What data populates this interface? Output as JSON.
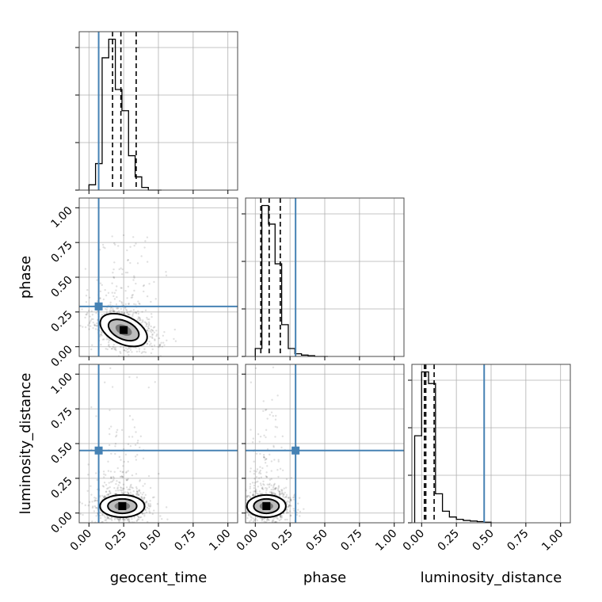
{
  "chart_data": {
    "type": "corner",
    "parameters": [
      "geocent_time",
      "phase",
      "luminosity_distance"
    ],
    "tick_labels": [
      "0.00",
      "0.25",
      "0.50",
      "0.75",
      "1.00"
    ],
    "ticks": [
      0,
      0.25,
      0.5,
      0.75,
      1.0
    ],
    "range": [
      -0.07,
      1.07
    ],
    "truths": {
      "geocent_time": 0.07,
      "phase": 0.29,
      "luminosity_distance": 0.45
    },
    "grid": true,
    "colors": {
      "truth": "#4682b4",
      "hist": "#000000",
      "samples": "#000000"
    },
    "histograms": {
      "geocent_time": {
        "bin_edges": [
          0.0,
          0.0475,
          0.095,
          0.1425,
          0.19,
          0.2375,
          0.285,
          0.3325,
          0.38,
          0.4275,
          0.475,
          0.5225
        ],
        "counts": [
          2,
          10,
          50,
          57,
          38,
          30,
          13,
          5,
          1,
          0,
          0
        ],
        "quantiles": [
          0.17,
          0.23,
          0.34
        ]
      },
      "phase": {
        "bin_edges": [
          0.0,
          0.0475,
          0.095,
          0.1425,
          0.19,
          0.2375,
          0.285,
          0.3325,
          0.38,
          0.4275,
          0.475,
          0.5225
        ],
        "counts": [
          3,
          57,
          50,
          35,
          12,
          3,
          1,
          0.5,
          0.3,
          0,
          0
        ],
        "quantiles": [
          0.04,
          0.1,
          0.18
        ]
      },
      "luminosity_distance": {
        "bin_edges": [
          -0.05,
          0.0,
          0.05,
          0.1,
          0.15,
          0.2,
          0.25,
          0.3,
          0.35,
          0.4,
          0.45,
          0.5
        ],
        "counts": [
          15,
          26,
          24,
          5,
          2,
          1,
          0.6,
          0.4,
          0.3,
          0.2,
          0.1
        ],
        "quantiles": [
          0.02,
          0.03,
          0.09
        ]
      }
    },
    "contours_2d": [
      {
        "x": "geocent_time",
        "y": "phase",
        "center": [
          0.25,
          0.12
        ],
        "spread": [
          0.09,
          0.05
        ],
        "tilt": -0.55
      },
      {
        "x": "geocent_time",
        "y": "luminosity_distance",
        "center": [
          0.24,
          0.05
        ],
        "spread": [
          0.08,
          0.04
        ],
        "tilt": 0.0
      },
      {
        "x": "phase",
        "y": "luminosity_distance",
        "center": [
          0.08,
          0.05
        ],
        "spread": [
          0.07,
          0.04
        ],
        "tilt": 0.0
      }
    ]
  }
}
